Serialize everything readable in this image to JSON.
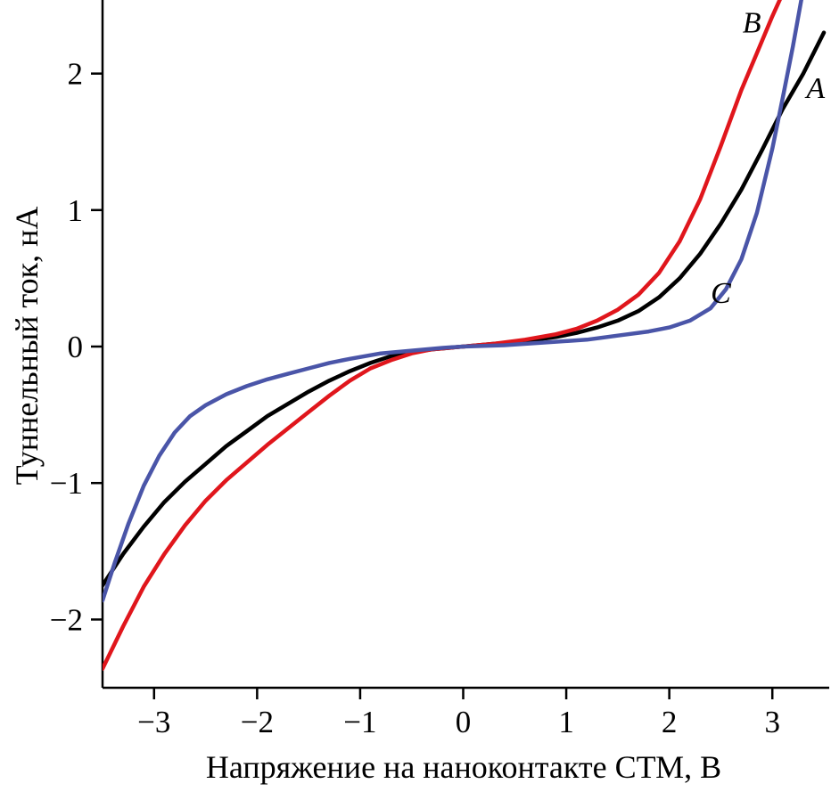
{
  "chart_data": {
    "type": "line",
    "title": "",
    "xlabel": "Напряжение на наноконтакте СТМ, В",
    "ylabel": "Туннельный ток, нА",
    "xlim": [
      -3.5,
      3.5
    ],
    "ylim": [
      -2.5,
      2.5
    ],
    "grid": false,
    "legend_position": "inline-annotations",
    "x_ticks": [
      -3,
      -2,
      -1,
      0,
      1,
      2,
      3
    ],
    "x_tick_labels": [
      "−3",
      "−2",
      "−1",
      "0",
      "1",
      "2",
      "3"
    ],
    "y_ticks": [
      -2,
      -1,
      0,
      1,
      2
    ],
    "y_tick_labels": [
      "−2",
      "−1",
      "0",
      "1",
      "2"
    ],
    "series": [
      {
        "name": "A",
        "color": "#000000",
        "label_pos": [
          3.42,
          1.82
        ],
        "points": [
          [
            -3.5,
            -1.75
          ],
          [
            -3.3,
            -1.52
          ],
          [
            -3.1,
            -1.32
          ],
          [
            -2.9,
            -1.14
          ],
          [
            -2.7,
            -0.99
          ],
          [
            -2.5,
            -0.86
          ],
          [
            -2.3,
            -0.73
          ],
          [
            -2.1,
            -0.62
          ],
          [
            -1.9,
            -0.51
          ],
          [
            -1.7,
            -0.42
          ],
          [
            -1.5,
            -0.33
          ],
          [
            -1.3,
            -0.25
          ],
          [
            -1.1,
            -0.18
          ],
          [
            -0.9,
            -0.12
          ],
          [
            -0.7,
            -0.07
          ],
          [
            -0.5,
            -0.04
          ],
          [
            -0.3,
            -0.02
          ],
          [
            0,
            0
          ],
          [
            0.3,
            0.02
          ],
          [
            0.6,
            0.04
          ],
          [
            0.9,
            0.07
          ],
          [
            1.1,
            0.1
          ],
          [
            1.3,
            0.14
          ],
          [
            1.5,
            0.19
          ],
          [
            1.7,
            0.26
          ],
          [
            1.9,
            0.36
          ],
          [
            2.1,
            0.5
          ],
          [
            2.3,
            0.68
          ],
          [
            2.5,
            0.9
          ],
          [
            2.7,
            1.15
          ],
          [
            2.9,
            1.44
          ],
          [
            3.1,
            1.74
          ],
          [
            3.3,
            2.0
          ],
          [
            3.5,
            2.3
          ]
        ]
      },
      {
        "name": "B",
        "color": "#e0161c",
        "label_pos": [
          2.8,
          2.3
        ],
        "points": [
          [
            -3.5,
            -2.36
          ],
          [
            -3.3,
            -2.05
          ],
          [
            -3.1,
            -1.76
          ],
          [
            -2.9,
            -1.52
          ],
          [
            -2.7,
            -1.31
          ],
          [
            -2.5,
            -1.13
          ],
          [
            -2.3,
            -0.98
          ],
          [
            -2.1,
            -0.85
          ],
          [
            -1.9,
            -0.72
          ],
          [
            -1.7,
            -0.6
          ],
          [
            -1.5,
            -0.48
          ],
          [
            -1.3,
            -0.36
          ],
          [
            -1.1,
            -0.25
          ],
          [
            -0.9,
            -0.16
          ],
          [
            -0.7,
            -0.1
          ],
          [
            -0.5,
            -0.05
          ],
          [
            -0.3,
            -0.02
          ],
          [
            0,
            0
          ],
          [
            0.3,
            0.02
          ],
          [
            0.6,
            0.05
          ],
          [
            0.9,
            0.09
          ],
          [
            1.1,
            0.13
          ],
          [
            1.3,
            0.19
          ],
          [
            1.5,
            0.27
          ],
          [
            1.7,
            0.38
          ],
          [
            1.9,
            0.54
          ],
          [
            2.1,
            0.77
          ],
          [
            2.3,
            1.08
          ],
          [
            2.5,
            1.47
          ],
          [
            2.7,
            1.88
          ],
          [
            2.85,
            2.15
          ],
          [
            3.0,
            2.42
          ],
          [
            3.12,
            2.62
          ]
        ]
      },
      {
        "name": "C",
        "color": "#4a55a8",
        "label_pos": [
          2.5,
          0.32
        ],
        "points": [
          [
            -3.5,
            -1.86
          ],
          [
            -3.38,
            -1.58
          ],
          [
            -3.25,
            -1.3
          ],
          [
            -3.1,
            -1.02
          ],
          [
            -2.95,
            -0.8
          ],
          [
            -2.8,
            -0.63
          ],
          [
            -2.65,
            -0.51
          ],
          [
            -2.5,
            -0.43
          ],
          [
            -2.3,
            -0.35
          ],
          [
            -2.1,
            -0.29
          ],
          [
            -1.9,
            -0.24
          ],
          [
            -1.7,
            -0.2
          ],
          [
            -1.5,
            -0.16
          ],
          [
            -1.3,
            -0.12
          ],
          [
            -1.1,
            -0.09
          ],
          [
            -0.8,
            -0.05
          ],
          [
            -0.5,
            -0.03
          ],
          [
            -0.2,
            -0.01
          ],
          [
            0,
            0
          ],
          [
            0.4,
            0.01
          ],
          [
            0.8,
            0.03
          ],
          [
            1.2,
            0.05
          ],
          [
            1.5,
            0.08
          ],
          [
            1.8,
            0.11
          ],
          [
            2.0,
            0.14
          ],
          [
            2.2,
            0.19
          ],
          [
            2.4,
            0.28
          ],
          [
            2.55,
            0.42
          ],
          [
            2.7,
            0.64
          ],
          [
            2.85,
            0.98
          ],
          [
            3.0,
            1.45
          ],
          [
            3.1,
            1.82
          ],
          [
            3.2,
            2.2
          ],
          [
            3.3,
            2.62
          ]
        ]
      }
    ]
  }
}
